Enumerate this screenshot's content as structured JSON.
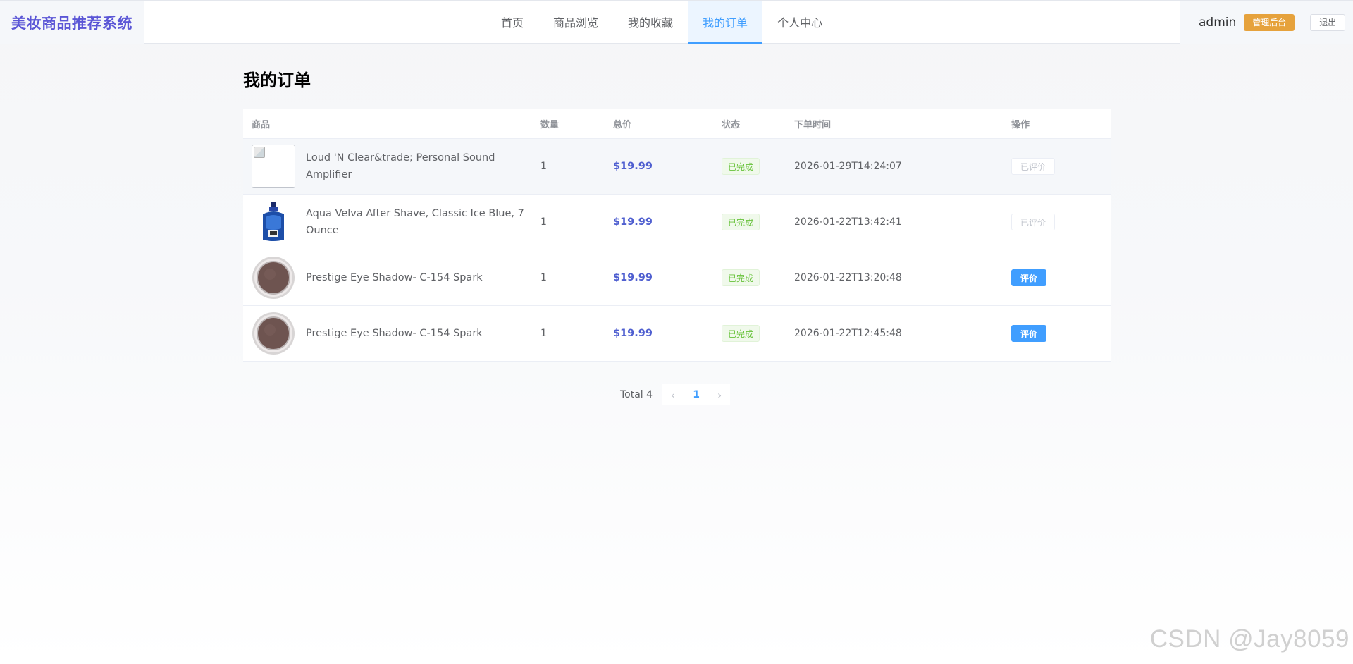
{
  "header": {
    "brand": "美妆商品推荐系统",
    "nav": [
      "首页",
      "商品浏览",
      "我的收藏",
      "我的订单",
      "个人中心"
    ],
    "active_nav": "我的订单",
    "username": "admin",
    "admin_label": "管理后台",
    "logout_label": "退出"
  },
  "main": {
    "title": "我的订单",
    "columns": [
      "商品",
      "数量",
      "总价",
      "状态",
      "下单时间",
      "操作"
    ],
    "rows": [
      {
        "product": "Loud 'N Clear&trade; Personal Sound Amplifier",
        "image": "broken-image-icon",
        "qty": "1",
        "price": "$19.99",
        "status": "已完成",
        "time": "2026-01-29T14:24:07",
        "action": "已评价",
        "action_type": "disabled"
      },
      {
        "product": "Aqua Velva After Shave, Classic Ice Blue, 7 Ounce",
        "image": "aftershave-bottle",
        "qty": "1",
        "price": "$19.99",
        "status": "已完成",
        "time": "2026-01-22T13:42:41",
        "action": "已评价",
        "action_type": "disabled"
      },
      {
        "product": "Prestige Eye Shadow- C-154 Spark",
        "image": "eyeshadow-compact",
        "qty": "1",
        "price": "$19.99",
        "status": "已完成",
        "time": "2026-01-22T13:20:48",
        "action": "评价",
        "action_type": "primary"
      },
      {
        "product": "Prestige Eye Shadow- C-154 Spark",
        "image": "eyeshadow-compact",
        "qty": "1",
        "price": "$19.99",
        "status": "已完成",
        "time": "2026-01-22T12:45:48",
        "action": "评价",
        "action_type": "primary"
      }
    ]
  },
  "pagination": {
    "total": "Total 4",
    "current": "1",
    "prev_icon": "chevron-left-icon",
    "next_icon": "chevron-right-icon"
  },
  "watermark": "CSDN @Jay8059",
  "colors": {
    "brand": "#5b56d6",
    "primary": "#409eff",
    "warning": "#e6a23c",
    "success": "#67c23a",
    "price": "#4f5fd0"
  }
}
